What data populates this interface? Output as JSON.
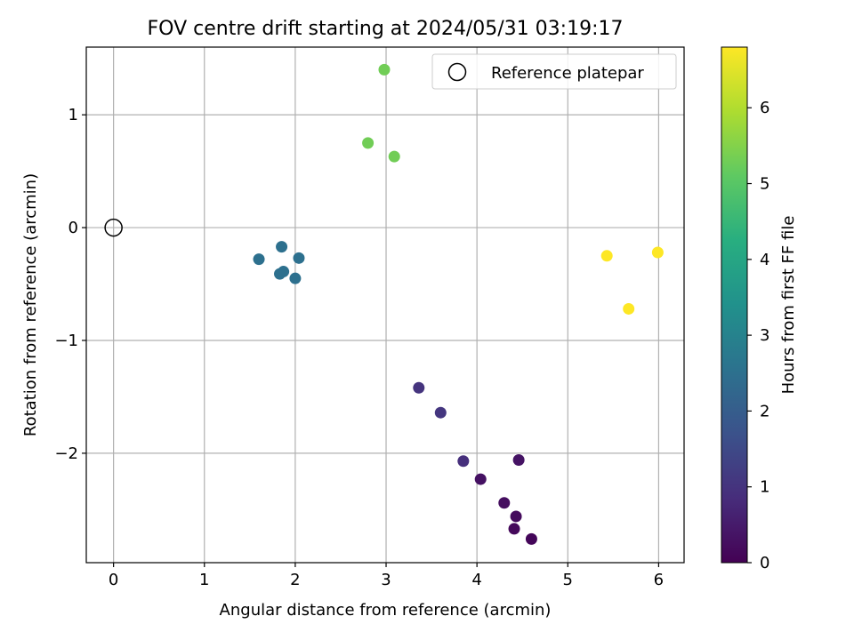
{
  "chart_data": {
    "type": "scatter",
    "title": "FOV centre drift starting at 2024/05/31 03:19:17",
    "xlabel": "Angular distance from reference (arcmin)",
    "ylabel": "Rotation from reference (arcmin)",
    "xlim": [
      -0.3,
      6.28
    ],
    "ylim": [
      -2.97,
      1.6
    ],
    "xticks": [
      0,
      1,
      2,
      3,
      4,
      5,
      6
    ],
    "xtick_labels": [
      "0",
      "1",
      "2",
      "3",
      "4",
      "5",
      "6"
    ],
    "yticks": [
      -2,
      -1,
      0,
      1
    ],
    "ytick_labels": [
      "−2",
      "−1",
      "0",
      "1"
    ],
    "grid": true,
    "legend": {
      "entries": [
        "Reference platepar"
      ],
      "placement": "top-right"
    },
    "reference_point": {
      "name": "Reference platepar",
      "x": 0,
      "y": 0,
      "marker": "open-circle"
    },
    "colorbar": {
      "label": "Hours from first FF file",
      "min": 0,
      "max": 6.8,
      "ticks": [
        0,
        1,
        2,
        3,
        4,
        5,
        6
      ],
      "tick_labels": [
        "0",
        "1",
        "2",
        "3",
        "4",
        "5",
        "6"
      ],
      "colormap": "viridis"
    },
    "points": [
      {
        "x": 4.6,
        "y": -2.76,
        "hours": 0.1
      },
      {
        "x": 4.41,
        "y": -2.67,
        "hours": 0.15
      },
      {
        "x": 4.43,
        "y": -2.56,
        "hours": 0.2
      },
      {
        "x": 4.3,
        "y": -2.44,
        "hours": 0.25
      },
      {
        "x": 4.04,
        "y": -2.23,
        "hours": 0.3
      },
      {
        "x": 4.46,
        "y": -2.06,
        "hours": 0.35
      },
      {
        "x": 3.85,
        "y": -2.07,
        "hours": 0.9
      },
      {
        "x": 3.6,
        "y": -1.64,
        "hours": 1.05
      },
      {
        "x": 3.36,
        "y": -1.42,
        "hours": 1.0
      },
      {
        "x": 1.6,
        "y": -0.28,
        "hours": 2.5
      },
      {
        "x": 1.85,
        "y": -0.17,
        "hours": 2.5
      },
      {
        "x": 2.04,
        "y": -0.27,
        "hours": 2.5
      },
      {
        "x": 1.83,
        "y": -0.41,
        "hours": 2.5
      },
      {
        "x": 1.87,
        "y": -0.39,
        "hours": 2.5
      },
      {
        "x": 2.0,
        "y": -0.45,
        "hours": 2.5
      },
      {
        "x": 2.98,
        "y": 1.4,
        "hours": 5.3
      },
      {
        "x": 2.8,
        "y": 0.75,
        "hours": 5.3
      },
      {
        "x": 3.09,
        "y": 0.63,
        "hours": 5.3
      },
      {
        "x": 5.43,
        "y": -0.25,
        "hours": 6.8
      },
      {
        "x": 5.67,
        "y": -0.72,
        "hours": 6.8
      },
      {
        "x": 5.99,
        "y": -0.22,
        "hours": 6.8
      }
    ]
  }
}
